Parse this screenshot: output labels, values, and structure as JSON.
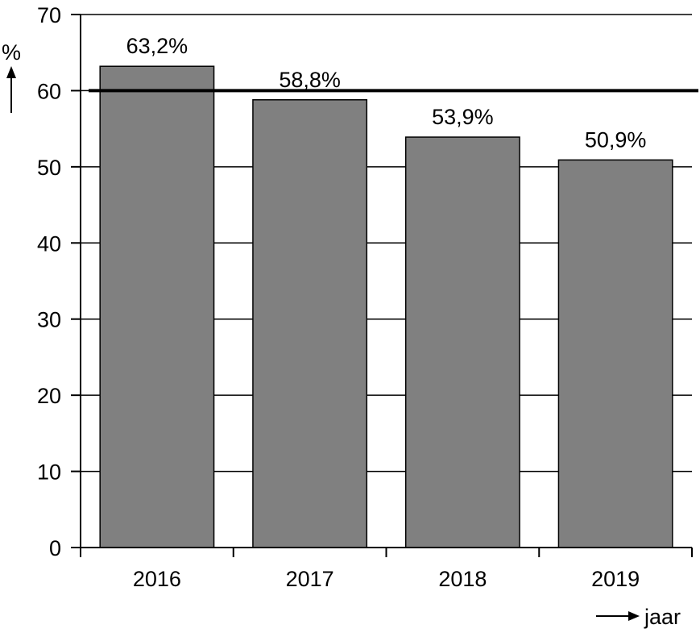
{
  "chart_data": {
    "type": "bar",
    "categories": [
      "2016",
      "2017",
      "2018",
      "2019"
    ],
    "values": [
      63.2,
      58.8,
      53.9,
      50.9
    ],
    "value_labels": [
      "63,2%",
      "58,8%",
      "53,9%",
      "50,9%"
    ],
    "ylim": [
      0,
      70
    ],
    "yticks": [
      0,
      10,
      20,
      30,
      40,
      50,
      60,
      70
    ],
    "ylabel": "%",
    "xlabel": "jaar",
    "reference_line": 60,
    "grid": true,
    "bar_color": "#808080",
    "title": ""
  }
}
